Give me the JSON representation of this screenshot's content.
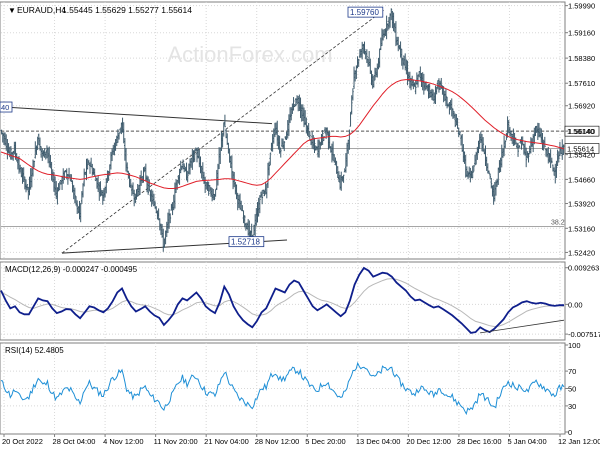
{
  "header": {
    "symbol": "EURAUD,H4",
    "ohlc": "1.55445 1.55629 1.55277 1.55614"
  },
  "watermark": "ActionForex.com",
  "colors": {
    "price": "#3d5a6c",
    "ma": "#e0202a",
    "macd": "#0f1f8c",
    "signal": "#b8b8b8",
    "rsi": "#1e8fd6",
    "grid": "#d8d8d8",
    "axis": "#7f7f7f",
    "trendline": "#333333"
  },
  "chart_data": [
    {
      "type": "line",
      "name": "price",
      "y_ticks": [
        1.5999,
        1.5916,
        1.5838,
        1.5761,
        1.5692,
        1.5614,
        1.5542,
        1.5466,
        1.5392,
        1.5316,
        1.5242
      ],
      "ylim": [
        1.5228,
        1.6004
      ],
      "x_labels": [
        "20 Oct 2022",
        "28 Oct 04:00",
        "4 Nov 12:00",
        "11 Nov 20:00",
        "21 Nov 04:00",
        "28 Nov 12:00",
        "5 Dec 20:00",
        "13 Dec 04:00",
        "20 Dec 12:00",
        "28 Dec 16:00",
        "5 Jan 04:00",
        "12 Jan 12:00"
      ],
      "series": [
        {
          "name": "",
          "values": [
            1.5616,
            1.5586,
            1.554,
            1.556,
            1.55,
            1.5465,
            1.543,
            1.5512,
            1.5595,
            1.554,
            1.556,
            1.548,
            1.5425,
            1.546,
            1.549,
            1.547,
            1.5405,
            1.5358,
            1.548,
            1.552,
            1.5485,
            1.5445,
            1.5415,
            1.548,
            1.5548,
            1.559,
            1.5638,
            1.5512,
            1.544,
            1.541,
            1.546,
            1.549,
            1.5422,
            1.539,
            1.5355,
            1.5266,
            1.5335,
            1.5385,
            1.547,
            1.5515,
            1.5475,
            1.5525,
            1.5555,
            1.55,
            1.545,
            1.543,
            1.5415,
            1.553,
            1.564,
            1.555,
            1.547,
            1.5405,
            1.536,
            1.5318,
            1.5286,
            1.535,
            1.542,
            1.543,
            1.5548,
            1.563,
            1.556,
            1.5584,
            1.564,
            1.57,
            1.571,
            1.566,
            1.5615,
            1.5575,
            1.5555,
            1.559,
            1.562,
            1.556,
            1.551,
            1.545,
            1.5495,
            1.562,
            1.579,
            1.584,
            1.588,
            1.583,
            1.576,
            1.581,
            1.59,
            1.594,
            1.5976,
            1.59,
            1.5855,
            1.581,
            1.5765,
            1.5745,
            1.579,
            1.576,
            1.574,
            1.571,
            1.576,
            1.574,
            1.57,
            1.568,
            1.563,
            1.559,
            1.549,
            1.547,
            1.552,
            1.56,
            1.555,
            1.548,
            1.541,
            1.549,
            1.556,
            1.563,
            1.56,
            1.556,
            1.558,
            1.553,
            1.557,
            1.562,
            1.56,
            1.556,
            1.553,
            1.549,
            1.554,
            1.5561
          ]
        },
        {
          "name": "",
          "values": [
            1.555,
            1.5545,
            1.554,
            1.5535,
            1.553,
            1.552,
            1.551,
            1.55,
            1.5492,
            1.5486,
            1.5482,
            1.548,
            1.5478,
            1.5475,
            1.5472,
            1.547,
            1.5468,
            1.5466,
            1.5468,
            1.5472,
            1.5475,
            1.5478,
            1.548,
            1.5482,
            1.5484,
            1.5486,
            1.5485,
            1.5482,
            1.5478,
            1.5474,
            1.5468,
            1.5462,
            1.5455,
            1.545,
            1.5445,
            1.544,
            1.5438,
            1.5438,
            1.544,
            1.5445,
            1.545,
            1.5455,
            1.546,
            1.5462,
            1.5463,
            1.5464,
            1.5465,
            1.5466,
            1.5468,
            1.5468,
            1.5466,
            1.5462,
            1.5458,
            1.5454,
            1.545,
            1.5448,
            1.545,
            1.5458,
            1.547,
            1.5485,
            1.55,
            1.5515,
            1.553,
            1.5545,
            1.556,
            1.5575,
            1.5585,
            1.559,
            1.5592,
            1.5594,
            1.5596,
            1.5598,
            1.5598,
            1.5596,
            1.5598,
            1.5604,
            1.5615,
            1.5632,
            1.5652,
            1.5672,
            1.5692,
            1.571,
            1.5728,
            1.5744,
            1.5756,
            1.5765,
            1.577,
            1.5772,
            1.5772,
            1.577,
            1.5768,
            1.5765,
            1.5762,
            1.5758,
            1.5753,
            1.5748,
            1.5742,
            1.5735,
            1.5726,
            1.5715,
            1.5703,
            1.569,
            1.5676,
            1.5662,
            1.5648,
            1.5636,
            1.5624,
            1.5614,
            1.5605,
            1.5598,
            1.5592,
            1.5588,
            1.5585,
            1.5582,
            1.558,
            1.5578,
            1.5576,
            1.5574,
            1.5571,
            1.5568,
            1.5564,
            1.556
          ]
        }
      ],
      "annotations": [
        {
          "text": "1.59760",
          "y": 1.5976
        },
        {
          "text": "1.52718",
          "y": 1.5272
        },
        {
          "text": "1.56140",
          "y": 1.5614
        },
        {
          "text": "1.55614",
          "y": 1.5561
        },
        {
          "text": "38.2",
          "y": 1.5322
        },
        {
          "text": "40",
          "y": 1.5688
        }
      ],
      "levels": [
        1.5614,
        1.5561,
        1.5322
      ]
    },
    {
      "type": "line",
      "name": "macd",
      "title": "MACD(12,26,9) -0.000247 -0.000495",
      "y_ticks": [
        0.009263,
        0.0,
        -0.007517
      ],
      "y_tick_labels": [
        "0.009263",
        "0.00",
        "-0.007517"
      ],
      "ylim": [
        -0.0085,
        0.0102
      ],
      "series": [
        {
          "name": "",
          "values": [
            0.0035,
            0.001,
            -0.001,
            -0.0005,
            -0.002,
            -0.0025,
            -0.0025,
            -0.0005,
            0.0015,
            0.001,
            0.0008,
            -0.001,
            -0.0022,
            -0.0018,
            -0.0012,
            -0.0013,
            -0.0025,
            -0.0035,
            -0.002,
            -0.0005,
            -0.0008,
            -0.0015,
            -0.002,
            -0.001,
            0.0008,
            0.003,
            0.004,
            0.0015,
            -0.0005,
            -0.0018,
            -0.0012,
            -0.0005,
            -0.0018,
            -0.0028,
            -0.0034,
            -0.0052,
            -0.004,
            -0.0025,
            0.0,
            0.0015,
            0.001,
            0.002,
            0.003,
            0.0015,
            -0.0005,
            -0.0015,
            -0.0022,
            0.0005,
            0.0045,
            0.0025,
            -0.0005,
            -0.0025,
            -0.004,
            -0.005,
            -0.0058,
            -0.0042,
            -0.002,
            -0.001,
            0.0015,
            0.004,
            0.0035,
            0.003,
            0.005,
            0.006,
            0.0055,
            0.0035,
            0.0015,
            -0.0005,
            -0.0015,
            -0.0008,
            0.0,
            -0.001,
            -0.002,
            -0.003,
            -0.002,
            0.001,
            0.005,
            0.0075,
            0.0092,
            0.0085,
            0.007,
            0.0075,
            0.008,
            0.0078,
            0.007,
            0.0055,
            0.0045,
            0.0035,
            0.002,
            0.001,
            0.0012,
            0.0005,
            -0.0002,
            -0.0008,
            -0.0005,
            -0.0012,
            -0.002,
            -0.0028,
            -0.0038,
            -0.0048,
            -0.006,
            -0.0072,
            -0.007,
            -0.0058,
            -0.0065,
            -0.007,
            -0.0062,
            -0.005,
            -0.0038,
            -0.002,
            -0.0008,
            -0.0002,
            0.0005,
            0.0008,
            0.0004,
            0.0002,
            0.0004,
            0.0002,
            -0.0002,
            -0.0004,
            -0.0002,
            -0.0002
          ]
        },
        {
          "name": "",
          "values": [
            0.003,
            0.0025,
            0.0018,
            0.0012,
            0.0005,
            -0.0002,
            -0.0008,
            -0.001,
            -0.0006,
            -0.0002,
            0.0001,
            0.0,
            -0.0004,
            -0.0008,
            -0.001,
            -0.0011,
            -0.0014,
            -0.0018,
            -0.002,
            -0.0017,
            -0.0015,
            -0.0015,
            -0.0016,
            -0.0015,
            -0.001,
            -0.0002,
            0.0006,
            0.001,
            0.0007,
            0.0002,
            -0.0001,
            -0.0002,
            -0.0005,
            -0.001,
            -0.0015,
            -0.0022,
            -0.0026,
            -0.0026,
            -0.0021,
            -0.0014,
            -0.0009,
            -0.0003,
            0.0004,
            0.0006,
            0.0004,
            0.0,
            -0.0004,
            -0.0003,
            0.0006,
            0.001,
            0.0007,
            0.0001,
            -0.0007,
            -0.0015,
            -0.0024,
            -0.0028,
            -0.0027,
            -0.0024,
            -0.0016,
            -0.0005,
            0.0003,
            0.0009,
            0.0017,
            0.0026,
            0.0032,
            0.0033,
            0.0029,
            0.0022,
            0.0015,
            0.001,
            0.0008,
            0.0004,
            -0.0001,
            -0.0007,
            -0.001,
            -0.0006,
            0.0005,
            0.0019,
            0.0033,
            0.0044,
            0.005,
            0.0055,
            0.006,
            0.0064,
            0.0065,
            0.0063,
            0.0059,
            0.0054,
            0.0047,
            0.004,
            0.0034,
            0.0028,
            0.0022,
            0.0016,
            0.0012,
            0.0007,
            0.0002,
            -0.0004,
            -0.0011,
            -0.0018,
            -0.0027,
            -0.0036,
            -0.0043,
            -0.0046,
            -0.005,
            -0.0054,
            -0.0056,
            -0.0055,
            -0.0051,
            -0.0045,
            -0.0038,
            -0.0031,
            -0.0024,
            -0.0017,
            -0.0013,
            -0.001,
            -0.0007,
            -0.0005,
            -0.0004,
            -0.0004,
            -0.0004,
            -0.0005
          ]
        }
      ]
    },
    {
      "type": "line",
      "name": "rsi",
      "title": "RSI(14) 52.4805",
      "y_ticks": [
        100,
        70,
        50,
        30,
        0
      ],
      "y_tick_labels": [
        "100",
        "70",
        "50",
        "30",
        "0"
      ],
      "ylim": [
        0,
        100
      ],
      "series": [
        {
          "name": "",
          "values": [
            58,
            50,
            42,
            48,
            40,
            38,
            40,
            52,
            62,
            54,
            56,
            45,
            38,
            44,
            50,
            48,
            38,
            34,
            50,
            56,
            50,
            46,
            42,
            52,
            62,
            66,
            70,
            50,
            42,
            40,
            48,
            52,
            42,
            38,
            34,
            26,
            36,
            44,
            56,
            62,
            56,
            62,
            64,
            54,
            46,
            44,
            42,
            56,
            70,
            58,
            48,
            40,
            36,
            32,
            30,
            40,
            50,
            52,
            64,
            70,
            60,
            62,
            68,
            72,
            70,
            62,
            56,
            50,
            48,
            54,
            58,
            50,
            44,
            38,
            46,
            60,
            74,
            76,
            78,
            70,
            62,
            66,
            72,
            72,
            74,
            62,
            56,
            50,
            46,
            44,
            52,
            48,
            46,
            42,
            50,
            48,
            42,
            40,
            34,
            30,
            24,
            26,
            34,
            44,
            40,
            34,
            28,
            40,
            50,
            58,
            54,
            50,
            52,
            46,
            52,
            58,
            54,
            50,
            46,
            42,
            50,
            52
          ]
        }
      ]
    }
  ]
}
